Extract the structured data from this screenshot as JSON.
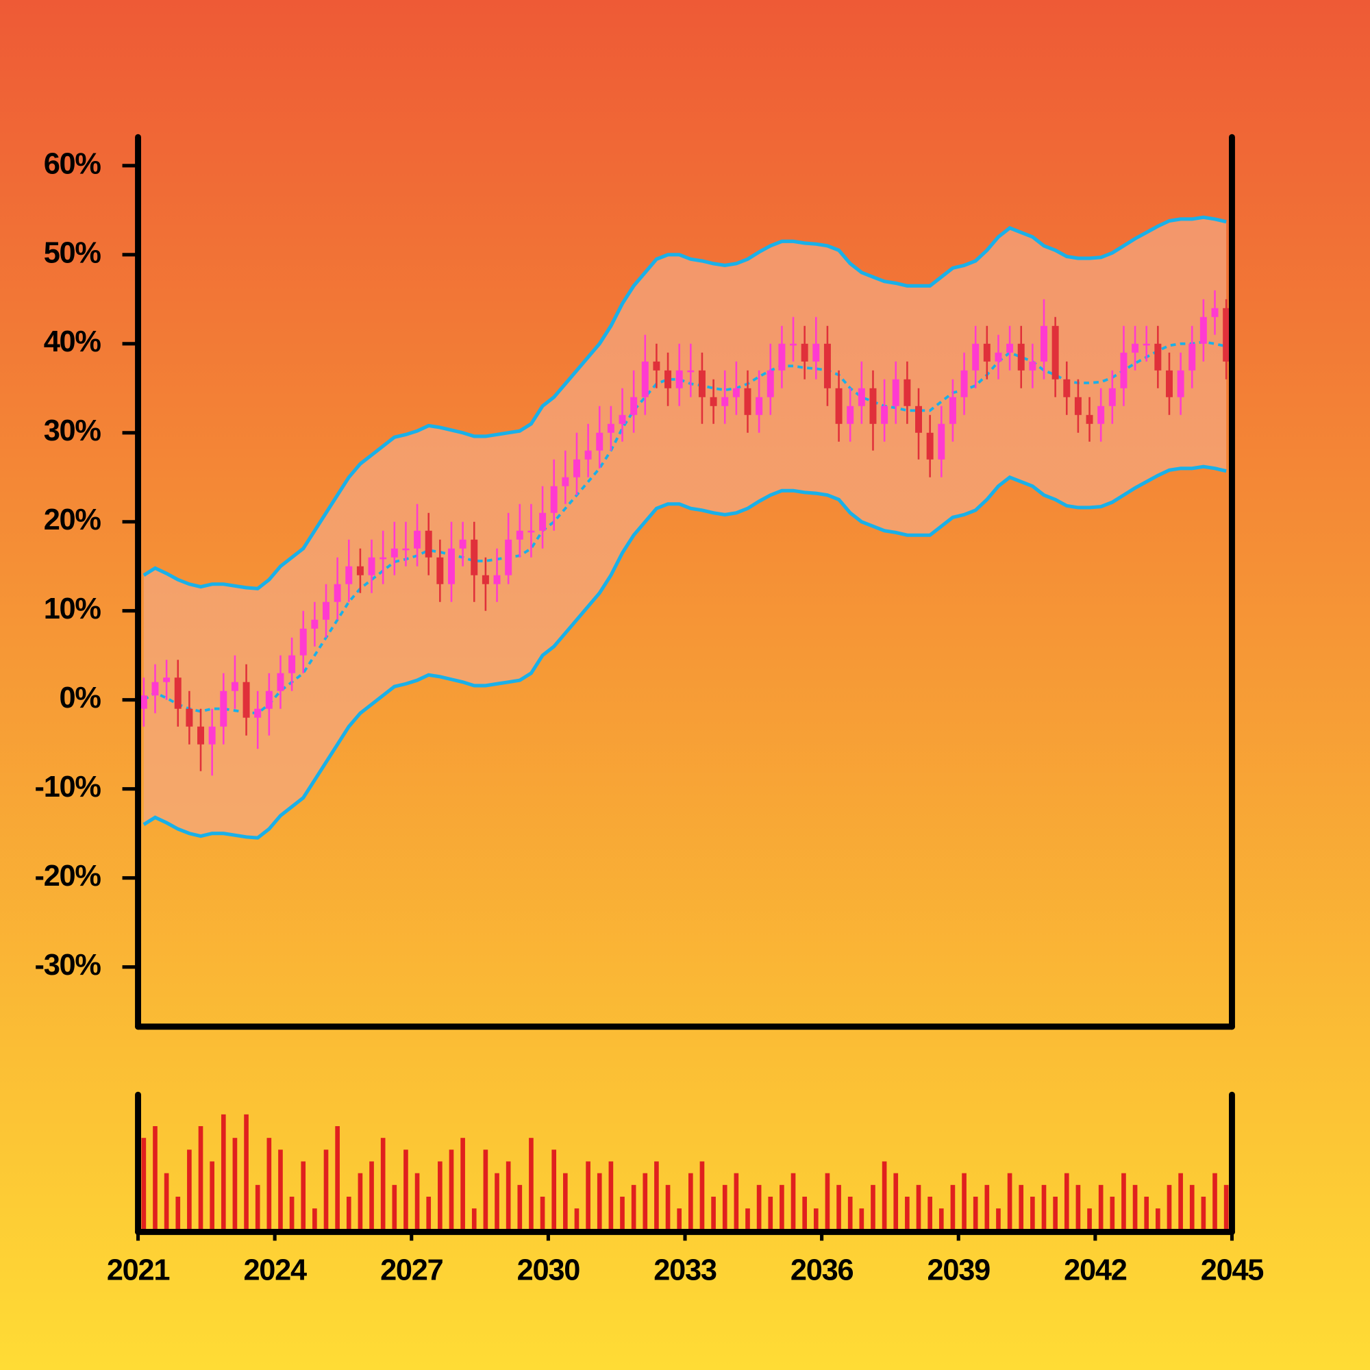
{
  "chart_data": {
    "type": "candlestick",
    "x": [
      2021,
      2021.25,
      2021.5,
      2021.75,
      2022,
      2022.25,
      2022.5,
      2022.75,
      2023,
      2023.25,
      2023.5,
      2023.75,
      2024,
      2024.25,
      2024.5,
      2024.75,
      2025,
      2025.25,
      2025.5,
      2025.75,
      2026,
      2026.25,
      2026.5,
      2026.75,
      2027,
      2027.25,
      2027.5,
      2027.75,
      2028,
      2028.25,
      2028.5,
      2028.75,
      2029,
      2029.25,
      2029.5,
      2029.75,
      2030,
      2030.25,
      2030.5,
      2030.75,
      2031,
      2031.25,
      2031.5,
      2031.75,
      2032,
      2032.25,
      2032.5,
      2032.75,
      2033,
      2033.25,
      2033.5,
      2033.75,
      2034,
      2034.25,
      2034.5,
      2034.75,
      2035,
      2035.25,
      2035.5,
      2035.75,
      2036,
      2036.25,
      2036.5,
      2036.75,
      2037,
      2037.25,
      2037.5,
      2037.75,
      2038,
      2038.25,
      2038.5,
      2038.75,
      2039,
      2039.25,
      2039.5,
      2039.75,
      2040,
      2040.25,
      2040.5,
      2040.75,
      2041,
      2041.25,
      2041.5,
      2041.75,
      2042,
      2042.25,
      2042.5,
      2042.75,
      2043,
      2043.25,
      2043.5,
      2043.75,
      2044,
      2044.25,
      2044.5,
      2044.75
    ],
    "open": [
      -1,
      0.5,
      2,
      2.5,
      -1,
      -3,
      -5,
      -3,
      1,
      2,
      -2,
      -1,
      1,
      3,
      5,
      8,
      9,
      11,
      13,
      15,
      14,
      16,
      16,
      17,
      17,
      19,
      16,
      13,
      17,
      18,
      14,
      13,
      14,
      18,
      19,
      19,
      21,
      24,
      25,
      27,
      28,
      30,
      31,
      32,
      34,
      38,
      37,
      35,
      37,
      37,
      34,
      33,
      34,
      35,
      32,
      34,
      37,
      40,
      40,
      38,
      40,
      35,
      31,
      33,
      35,
      31,
      33,
      36,
      33,
      30,
      27,
      31,
      34,
      37,
      40,
      38,
      39,
      40,
      37,
      38,
      42,
      36,
      34,
      32,
      31,
      33,
      35,
      39,
      40,
      40,
      37,
      34,
      37,
      40,
      43,
      44
    ],
    "high": [
      2.5,
      4,
      4.5,
      4.5,
      1,
      -1,
      -1,
      3,
      5,
      4,
      1,
      3,
      5,
      7,
      10,
      11,
      13,
      16,
      18,
      17,
      18,
      19,
      20,
      20,
      22,
      21,
      18,
      20,
      20,
      20,
      16,
      17,
      21,
      22,
      22,
      24,
      27,
      28,
      30,
      31,
      33,
      33,
      35,
      37,
      41,
      40,
      39,
      40,
      40,
      39,
      36,
      37,
      38,
      37,
      37,
      40,
      42,
      43,
      42,
      43,
      42,
      37,
      35,
      38,
      37,
      36,
      38,
      38,
      35,
      32,
      33,
      36,
      39,
      42,
      42,
      41,
      42,
      42,
      40,
      45,
      43,
      38,
      36,
      34,
      35,
      37,
      42,
      42,
      42,
      42,
      39,
      39,
      42,
      45,
      46,
      45
    ],
    "low": [
      -3,
      -1.5,
      0,
      -3,
      -5,
      -8,
      -8.5,
      -5,
      -1,
      -4,
      -5.5,
      -4,
      -1,
      1,
      3,
      6,
      7,
      9,
      11,
      12,
      12,
      13,
      14,
      15,
      15,
      14,
      11,
      11,
      15,
      11,
      10,
      11,
      13,
      16,
      16,
      17,
      19,
      22,
      23,
      25,
      26,
      28,
      29,
      30,
      32,
      35,
      33,
      33,
      34,
      31,
      31,
      31,
      32,
      30,
      30,
      32,
      35,
      38,
      36,
      36,
      33,
      29,
      29,
      31,
      28,
      29,
      31,
      31,
      27,
      25,
      25,
      29,
      32,
      35,
      36,
      36,
      37,
      35,
      35,
      36,
      34,
      32,
      30,
      29,
      29,
      31,
      33,
      37,
      38,
      35,
      32,
      32,
      35,
      38,
      41,
      36
    ],
    "close": [
      0.5,
      2,
      2.5,
      -1,
      -3,
      -5,
      -3,
      1,
      2,
      -2,
      -1,
      1,
      3,
      5,
      8,
      9,
      11,
      13,
      15,
      14,
      16,
      16,
      17,
      17,
      19,
      16,
      13,
      17,
      18,
      14,
      13,
      14,
      18,
      19,
      19,
      21,
      24,
      25,
      27,
      28,
      30,
      31,
      32,
      34,
      38,
      37,
      35,
      37,
      37,
      34,
      33,
      34,
      35,
      32,
      34,
      37,
      40,
      40,
      38,
      40,
      35,
      31,
      33,
      35,
      31,
      33,
      36,
      33,
      30,
      27,
      31,
      34,
      37,
      40,
      38,
      39,
      40,
      37,
      38,
      42,
      36,
      34,
      32,
      31,
      33,
      35,
      39,
      40,
      40,
      37,
      34,
      37,
      40,
      43,
      44,
      38
    ],
    "up_color": "#ff3ad0",
    "down_color": "#e0303a",
    "bands": {
      "color": "#1ab0e8",
      "fill": "#f4a882",
      "upper": [
        14,
        14.8,
        14.2,
        13.5,
        13,
        12.7,
        13,
        13,
        12.8,
        12.6,
        12.5,
        13.5,
        15,
        16,
        17,
        19,
        21,
        23,
        25,
        26.5,
        27.5,
        28.5,
        29.5,
        29.8,
        30.2,
        30.8,
        30.6,
        30.3,
        30,
        29.6,
        29.6,
        29.8,
        30,
        30.2,
        31,
        33,
        34,
        35.5,
        37,
        38.5,
        40,
        42,
        44.5,
        46.5,
        48,
        49.5,
        50,
        50,
        49.5,
        49.3,
        49,
        48.8,
        49,
        49.5,
        50.3,
        51,
        51.5,
        51.5,
        51.3,
        51.2,
        51,
        50.5,
        49,
        48,
        47.5,
        47,
        46.8,
        46.5,
        46.5,
        46.5,
        47.5,
        48.5,
        48.8,
        49.3,
        50.5,
        52,
        53,
        52.5,
        52,
        51,
        50.5,
        49.8,
        49.6,
        49.6,
        49.7,
        50.2,
        51,
        51.8,
        52.5,
        53.2,
        53.8,
        54,
        54,
        54.2,
        54,
        53.7
      ],
      "middle": [
        0,
        0.8,
        0.2,
        -0.5,
        -1,
        -1.3,
        -1,
        -1,
        -1.2,
        -1.4,
        -1.5,
        -0.5,
        1,
        2,
        3,
        5,
        7,
        9,
        11,
        12.5,
        13.5,
        14.5,
        15.5,
        15.8,
        16.2,
        16.8,
        16.6,
        16.3,
        16,
        15.6,
        15.6,
        15.8,
        16,
        16.2,
        17,
        19,
        20,
        21.5,
        23,
        24.5,
        26,
        28,
        30.5,
        32.5,
        34,
        35.5,
        36,
        36,
        35.5,
        35.3,
        35,
        34.8,
        35,
        35.5,
        36.3,
        37,
        37.5,
        37.5,
        37.3,
        37.2,
        37,
        36.5,
        35,
        34,
        33.5,
        33,
        32.8,
        32.5,
        32.5,
        32.5,
        33.5,
        34.5,
        34.8,
        35.3,
        36.5,
        38,
        39,
        38.5,
        38,
        37,
        36.5,
        35.8,
        35.6,
        35.6,
        35.7,
        36.2,
        37,
        37.8,
        38.5,
        39.2,
        39.8,
        40,
        40,
        40.2,
        40,
        39.7
      ],
      "lower": [
        -14,
        -13.2,
        -13.8,
        -14.5,
        -15,
        -15.3,
        -15,
        -15,
        -15.2,
        -15.4,
        -15.5,
        -14.5,
        -13,
        -12,
        -11,
        -9,
        -7,
        -5,
        -3,
        -1.5,
        -0.5,
        0.5,
        1.5,
        1.8,
        2.2,
        2.8,
        2.6,
        2.3,
        2,
        1.6,
        1.6,
        1.8,
        2,
        2.2,
        3,
        5,
        6,
        7.5,
        9,
        10.5,
        12,
        14,
        16.5,
        18.5,
        20,
        21.5,
        22,
        22,
        21.5,
        21.3,
        21,
        20.8,
        21,
        21.5,
        22.3,
        23,
        23.5,
        23.5,
        23.3,
        23.2,
        23,
        22.5,
        21,
        20,
        19.5,
        19,
        18.8,
        18.5,
        18.5,
        18.5,
        19.5,
        20.5,
        20.8,
        21.3,
        22.5,
        24,
        25,
        24.5,
        24,
        23,
        22.5,
        21.8,
        21.6,
        21.6,
        21.7,
        22.2,
        23,
        23.8,
        24.5,
        25.2,
        25.8,
        26,
        26,
        26.2,
        26,
        25.7
      ]
    },
    "volume": [
      8,
      9,
      5,
      3,
      7,
      9,
      6,
      10,
      8,
      10,
      4,
      8,
      7,
      3,
      6,
      2,
      7,
      9,
      3,
      5,
      6,
      8,
      4,
      7,
      5,
      3,
      6,
      7,
      8,
      2,
      7,
      5,
      6,
      4,
      8,
      3,
      7,
      5,
      2,
      6,
      5,
      6,
      3,
      4,
      5,
      6,
      4,
      2,
      5,
      6,
      3,
      4,
      5,
      2,
      4,
      3,
      4,
      5,
      3,
      2,
      5,
      4,
      3,
      2,
      4,
      6,
      5,
      3,
      4,
      3,
      2,
      4,
      5,
      3,
      4,
      2,
      5,
      4,
      3,
      4,
      3,
      5,
      4,
      2,
      4,
      3,
      5,
      4,
      3,
      2,
      4,
      5,
      4,
      3,
      5,
      4
    ],
    "volume_color": "#e0201e",
    "vlim": [
      0,
      11
    ],
    "xlim": [
      2021,
      2045
    ],
    "xticks": [
      2021,
      2024,
      2027,
      2030,
      2033,
      2036,
      2039,
      2042,
      2045
    ],
    "ylim": [
      -36.7,
      63.2
    ],
    "yticks": [
      {
        "value": -30,
        "label": "-30%"
      },
      {
        "value": -20,
        "label": "-20%"
      },
      {
        "value": -10,
        "label": "-10%"
      },
      {
        "value": 0,
        "label": "0%"
      },
      {
        "value": 10,
        "label": "10%"
      },
      {
        "value": 20,
        "label": "20%"
      },
      {
        "value": 30,
        "label": "30%"
      },
      {
        "value": 40,
        "label": "40%"
      },
      {
        "value": 50,
        "label": "50%"
      },
      {
        "value": 60,
        "label": "60%"
      }
    ]
  }
}
